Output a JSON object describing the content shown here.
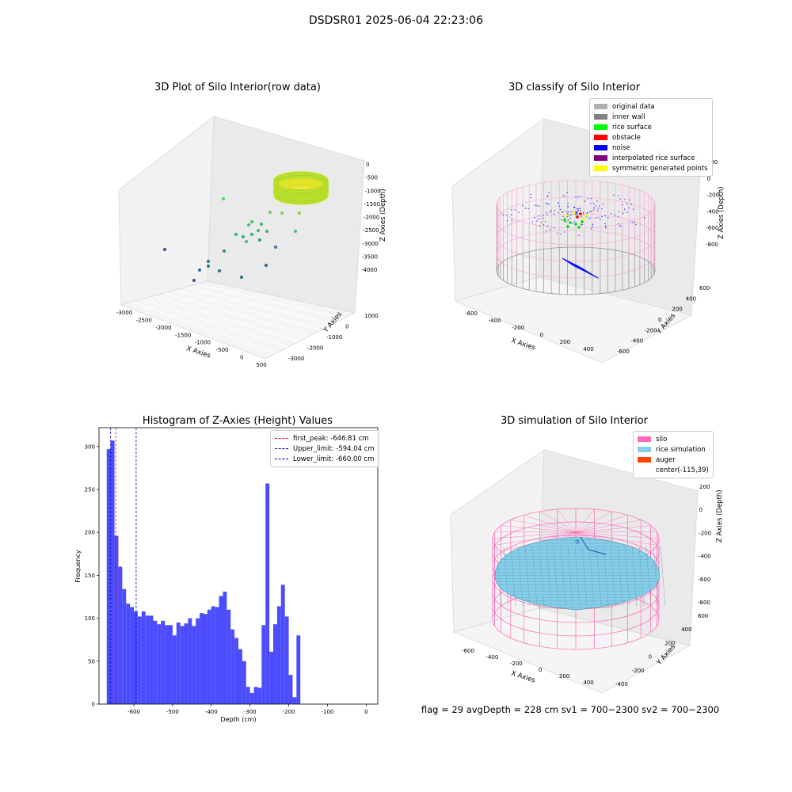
{
  "suptitle": "DSDSR01 2025-06-04 22:23:06",
  "status_text": "flag = 29  avgDepth = 228 cm  sv1 = 700~2300  sv2 = 700~2300",
  "chart_data": [
    {
      "type": "scatter3d",
      "title": "3D Plot of Silo Interior(row data)",
      "xlabel": "X Axies",
      "ylabel": "Y Axies",
      "zlabel": "Z Axies (Depth)",
      "x_ticks": [
        "-3000",
        "-2500",
        "-2000",
        "-1500",
        "-1000",
        "-500",
        "0",
        "500"
      ],
      "y_ticks": [
        "-3000",
        "-2000",
        "-1000",
        "0",
        "1000"
      ],
      "z_ticks": [
        "0",
        "-500",
        "-1000",
        "-1500",
        "-2000",
        "-2500",
        "-3000",
        "-3500",
        "-4000"
      ],
      "colormap": "viridis"
    },
    {
      "type": "scatter3d",
      "title": "3D classify of Silo Interior",
      "xlabel": "X Axies",
      "ylabel": "Y Axies",
      "zlabel": "Z Axies (Depth)",
      "x_ticks": [
        "-600",
        "-400",
        "-200",
        "0",
        "200",
        "400"
      ],
      "y_ticks": [
        "-600",
        "-400",
        "-200",
        "0",
        "200",
        "400",
        "600"
      ],
      "z_ticks": [
        "200",
        "0",
        "-200",
        "-400",
        "-600",
        "-800"
      ],
      "legend": [
        {
          "label": "original data",
          "color": "#b0b0b0"
        },
        {
          "label": "inner wall",
          "color": "#808080"
        },
        {
          "label": "rice surface",
          "color": "#00ff00"
        },
        {
          "label": "obstacle",
          "color": "#ff0000"
        },
        {
          "label": "noise",
          "color": "#0000ff"
        },
        {
          "label": "interpolated rice surface",
          "color": "#800080"
        },
        {
          "label": "symmetric generated points",
          "color": "#ffff00"
        }
      ]
    },
    {
      "type": "bar",
      "title": "Histogram of Z-Axies (Height) Values",
      "xlabel": "Depth (cm)",
      "ylabel": "Frequency",
      "xlim": [
        -690,
        30
      ],
      "ylim": [
        0,
        322
      ],
      "bin_start": -670,
      "bin_width": 10,
      "values": [
        297,
        307,
        196,
        160,
        134,
        117,
        113,
        108,
        102,
        108,
        103,
        103,
        97,
        93,
        97,
        92,
        92,
        80,
        95,
        91,
        94,
        100,
        91,
        100,
        106,
        105,
        110,
        114,
        113,
        126,
        131,
        110,
        87,
        77,
        64,
        50,
        20,
        13,
        20,
        19,
        92,
        257,
        61,
        93,
        114,
        139,
        102,
        34,
        8,
        80
      ],
      "x_ticks": [
        -600,
        -500,
        -400,
        -300,
        -200,
        -100,
        0
      ],
      "y_ticks": [
        0,
        50,
        100,
        150,
        200,
        250,
        300
      ],
      "bar_color": "#4c4cff",
      "vlines": [
        {
          "label": "first_peak: -646.81 cm",
          "x": -646.81,
          "color": "#ff0000"
        },
        {
          "label": "Upper_limit: -594.04 cm",
          "x": -594.04,
          "color": "#0000cc"
        },
        {
          "label": "Lower_limit: -660.00 cm",
          "x": -660.0,
          "color": "#0000cc"
        }
      ],
      "legend_position": "top-right"
    },
    {
      "type": "surface3d",
      "title": "3D simulation of Silo Interior",
      "xlabel": "X Axies",
      "ylabel": "Y Axies",
      "zlabel": "Z Axies (Depth)",
      "x_ticks": [
        "-600",
        "-400",
        "-200",
        "0",
        "200",
        "400"
      ],
      "y_ticks": [
        "-400",
        "-200",
        "0",
        "200",
        "400",
        "600"
      ],
      "z_ticks": [
        "200",
        "0",
        "-200",
        "-400",
        "-600",
        "-800"
      ],
      "legend": [
        {
          "label": "silo",
          "color": "#ff69b4"
        },
        {
          "label": "rice simulation",
          "color": "#87ceeb"
        },
        {
          "label": "auger",
          "color": "#ff4500"
        },
        {
          "label": "center(-115,39)",
          "color": ""
        }
      ]
    }
  ]
}
